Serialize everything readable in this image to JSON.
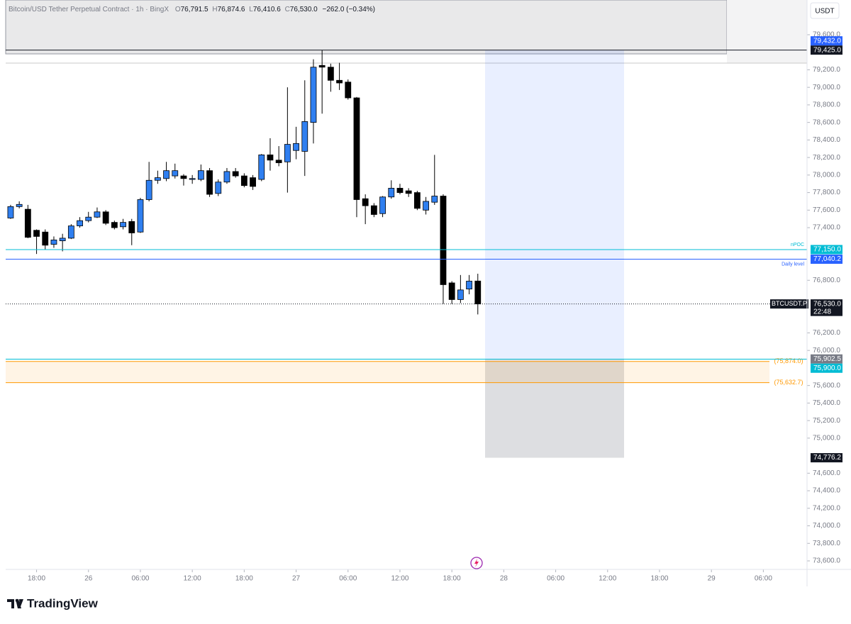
{
  "header": {
    "title": "Bitcoin/USD Tether Perpetual Contract · 1h · BingX",
    "ohlc": [
      {
        "key": "O",
        "value": "76,791.5"
      },
      {
        "key": "H",
        "value": "76,874.6"
      },
      {
        "key": "L",
        "value": "76,410.6"
      },
      {
        "key": "C",
        "value": "76,530.0"
      }
    ],
    "change": "−262.0 (−0.34%)",
    "currency": "USDT",
    "brand": "TradingView"
  },
  "chart_data": {
    "type": "candlestick",
    "up_color": "#2f7ff0",
    "down_color": "#000000",
    "open": [
      77510,
      77640,
      77610,
      77370,
      77350,
      77210,
      77250,
      77280,
      77420,
      77480,
      77520,
      77580,
      77460,
      77410,
      77470,
      77350,
      77720,
      77940,
      77960,
      77990,
      77990,
      77950,
      77950,
      78050,
      77790,
      77920,
      78040,
      77990,
      77970,
      77950,
      78230,
      78170,
      78150,
      78280,
      78270,
      78600,
      79250,
      79230,
      79080,
      79060,
      78880,
      77730,
      77650,
      77560,
      77750,
      77850,
      77820,
      77800,
      77600,
      77690,
      77760,
      76770,
      76580,
      76700,
      76791.5
    ],
    "high": [
      77660,
      77700,
      77660,
      77380,
      77380,
      77300,
      77330,
      77440,
      77520,
      77580,
      77630,
      77600,
      77480,
      77500,
      77500,
      77740,
      78150,
      78050,
      78150,
      78130,
      78010,
      78000,
      78120,
      78080,
      77950,
      78080,
      78080,
      78020,
      78000,
      78240,
      78420,
      78330,
      79000,
      78550,
      79080,
      79320,
      79425,
      79270,
      79280,
      79090,
      78890,
      77780,
      77680,
      77760,
      77940,
      77900,
      77850,
      77820,
      77750,
      78230,
      77780,
      76790,
      76860,
      76860,
      76874.6
    ],
    "low": [
      77500,
      77620,
      77280,
      77100,
      77150,
      77170,
      77130,
      77270,
      77400,
      77460,
      77510,
      77430,
      77380,
      77380,
      77200,
      77340,
      77700,
      77900,
      77930,
      77960,
      77880,
      77900,
      77930,
      77750,
      77760,
      77900,
      77970,
      77860,
      77830,
      77930,
      78050,
      78100,
      77800,
      78180,
      77990,
      78360,
      78700,
      78950,
      78970,
      78860,
      77520,
      77440,
      77520,
      77520,
      77730,
      77780,
      77750,
      77600,
      77550,
      77660,
      76530,
      76530,
      76540,
      76640,
      76410.6
    ],
    "close": [
      77640,
      77665,
      77290,
      77300,
      77200,
      77260,
      77280,
      77420,
      77480,
      77520,
      77580,
      77450,
      77400,
      77460,
      77340,
      77720,
      77940,
      77970,
      78050,
      78050,
      77960,
      77960,
      78050,
      77780,
      77920,
      78040,
      77990,
      77880,
      77870,
      78230,
      78170,
      78140,
      78350,
      78360,
      78610,
      79230,
      79230,
      79080,
      79050,
      78880,
      77720,
      77650,
      77550,
      77750,
      77850,
      77800,
      77790,
      77620,
      77700,
      77760,
      76750,
      76580,
      76690,
      76790,
      76530.0
    ],
    "xlim": [
      -0.57,
      92.05
    ],
    "xticks": [
      {
        "value": 3,
        "label": "18:00"
      },
      {
        "value": 9,
        "label": "26"
      },
      {
        "value": 15,
        "label": "06:00"
      },
      {
        "value": 21,
        "label": "12:00"
      },
      {
        "value": 27,
        "label": "18:00"
      },
      {
        "value": 33,
        "label": "27"
      },
      {
        "value": 39,
        "label": "06:00"
      },
      {
        "value": 45,
        "label": "12:00"
      },
      {
        "value": 51,
        "label": "18:00"
      },
      {
        "value": 57,
        "label": "28"
      },
      {
        "value": 63,
        "label": "06:00"
      },
      {
        "value": 69,
        "label": "12:00"
      },
      {
        "value": 75,
        "label": "18:00"
      },
      {
        "value": 81,
        "label": "29"
      },
      {
        "value": 87,
        "label": "06:00"
      }
    ],
    "ylim": [
      73503,
      79996
    ],
    "yticks": [
      {
        "value": 79600,
        "label": "79,600.0"
      },
      {
        "value": 79200,
        "label": "79,200.0"
      },
      {
        "value": 79000,
        "label": "79,000.0"
      },
      {
        "value": 78800,
        "label": "78,800.0"
      },
      {
        "value": 78600,
        "label": "78,600.0"
      },
      {
        "value": 78400,
        "label": "78,400.0"
      },
      {
        "value": 78200,
        "label": "78,200.0"
      },
      {
        "value": 78000,
        "label": "78,000.0"
      },
      {
        "value": 77800,
        "label": "77,800.0"
      },
      {
        "value": 77600,
        "label": "77,600.0"
      },
      {
        "value": 77400,
        "label": "77,400.0"
      },
      {
        "value": 76800,
        "label": "76,800.0"
      },
      {
        "value": 76200,
        "label": "76,200.0"
      },
      {
        "value": 76000,
        "label": "76,000.0"
      },
      {
        "value": 75600,
        "label": "75,600.0"
      },
      {
        "value": 75400,
        "label": "75,400.0"
      },
      {
        "value": 75200,
        "label": "75,200.0"
      },
      {
        "value": 75000,
        "label": "75,000.0"
      },
      {
        "value": 74600,
        "label": "74,600.0"
      },
      {
        "value": 74400,
        "label": "74,400.0"
      },
      {
        "value": 74200,
        "label": "74,200.0"
      },
      {
        "value": 74000,
        "label": "74,000.0"
      },
      {
        "value": 73800,
        "label": "73,800.0"
      },
      {
        "value": 73600,
        "label": "73,600.0"
      }
    ],
    "levels": [
      {
        "value": 79425,
        "label": "79,425.0",
        "color": "#131722",
        "style": "solid"
      },
      {
        "value": 79432,
        "label": "79,432.0",
        "color": "#2962ff",
        "style": "none"
      },
      {
        "value": 77150,
        "label": "77,150.0",
        "color": "#00bcd4",
        "style": "solid",
        "note": "nPOC"
      },
      {
        "value": 77040.2,
        "label": "77,040.2",
        "color": "#2962ff",
        "style": "solid",
        "note": "Daily level"
      },
      {
        "value": 76530,
        "label": "76,530.0",
        "color": "#131722",
        "style": "dotted",
        "tag": "BTCUSDT.P",
        "sub": "22:48"
      },
      {
        "value": 75902.5,
        "label": "75,902.5",
        "color": "#787b86",
        "style": "none"
      },
      {
        "value": 75900,
        "label": "75,900.0",
        "color": "#00bcd4",
        "style": "solid"
      },
      {
        "value": 74776.2,
        "label": "74,776.2",
        "color": "#131722",
        "style": "none"
      }
    ],
    "zone": {
      "high": 75874,
      "low": 75632.7,
      "high_label": "(75,874.0)",
      "low_label": "(75,632.7)",
      "color": "#ff9800"
    },
    "position": {
      "stop": 79425,
      "entry": 75900,
      "target": 74776.2
    }
  }
}
